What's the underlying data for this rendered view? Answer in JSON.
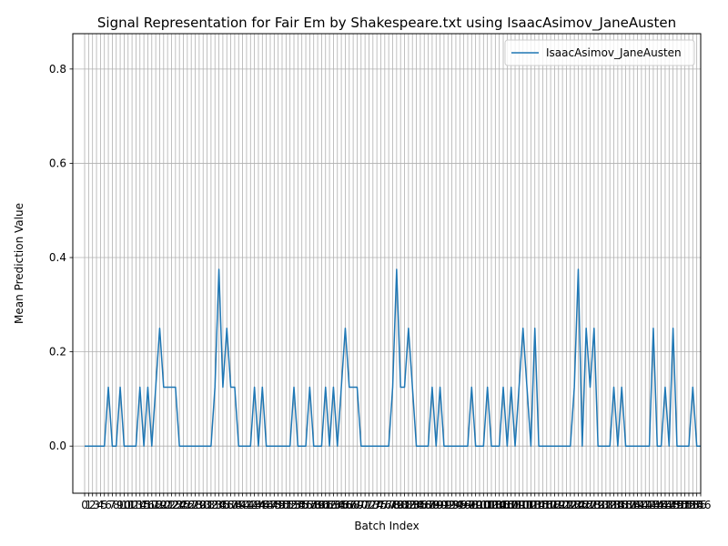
{
  "chart_data": {
    "type": "line",
    "title": "Signal Representation for Fair Em by Shakespeare.txt using IsaacAsimov_JaneAusten",
    "xlabel": "Batch Index",
    "ylabel": "Mean Prediction Value",
    "xlim": [
      -3,
      156
    ],
    "ylim": [
      -0.1,
      0.875
    ],
    "yticks": [
      0.0,
      0.2,
      0.4,
      0.6,
      0.8
    ],
    "ytick_labels": [
      "0.0",
      "0.2",
      "0.4",
      "0.6",
      "0.8"
    ],
    "grid": true,
    "legend": {
      "position": "top-right"
    },
    "series": [
      {
        "name": "IsaacAsimov_JaneAusten",
        "color": "#1f77b4",
        "values": [
          0,
          0,
          0,
          0,
          0,
          0,
          0.125,
          0,
          0,
          0.125,
          0,
          0,
          0,
          0,
          0.125,
          0,
          0.125,
          0,
          0.125,
          0.25,
          0.125,
          0.125,
          0.125,
          0.125,
          0,
          0,
          0,
          0,
          0,
          0,
          0,
          0,
          0,
          0.125,
          0.375,
          0.125,
          0.25,
          0.125,
          0.125,
          0,
          0,
          0,
          0,
          0.125,
          0,
          0.125,
          0,
          0,
          0,
          0,
          0,
          0,
          0,
          0.125,
          0,
          0,
          0,
          0.125,
          0,
          0,
          0,
          0.125,
          0,
          0.125,
          0,
          0.125,
          0.25,
          0.125,
          0.125,
          0.125,
          0,
          0,
          0,
          0,
          0,
          0,
          0,
          0,
          0.125,
          0.375,
          0.125,
          0.125,
          0.25,
          0.125,
          0,
          0,
          0,
          0,
          0.125,
          0,
          0.125,
          0,
          0,
          0,
          0,
          0,
          0,
          0,
          0.125,
          0,
          0,
          0,
          0.125,
          0,
          0,
          0,
          0.125,
          0,
          0.125,
          0,
          0.125,
          0.25,
          0.125,
          0,
          0.25,
          0,
          0,
          0,
          0,
          0,
          0,
          0,
          0,
          0,
          0.125,
          0.375,
          0,
          0.25,
          0.125,
          0.25,
          0,
          0,
          0,
          0,
          0.125,
          0,
          0.125,
          0,
          0,
          0,
          0,
          0,
          0,
          0,
          0.25,
          0,
          0,
          0.125,
          0,
          0.25,
          0,
          0,
          0,
          0,
          0.125,
          0,
          0
        ]
      }
    ]
  }
}
